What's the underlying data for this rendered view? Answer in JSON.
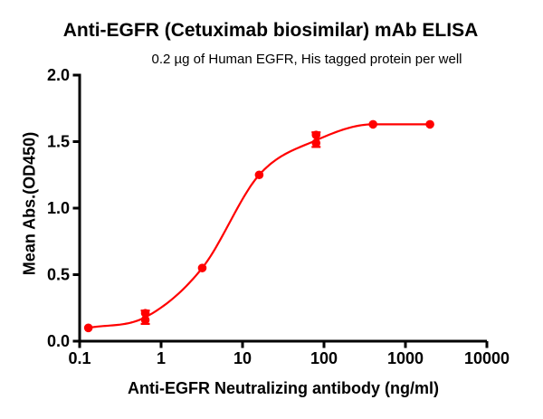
{
  "chart_data": {
    "type": "scatter",
    "title": "Anti-EGFR (Cetuximab biosimilar) mAb ELISA",
    "subtitle": "0.2 µg of Human EGFR, His tagged protein per well",
    "xlabel": "Anti-EGFR Neutralizing antibody (ng/ml)",
    "ylabel": "Mean Abs.(OD450)",
    "x_scale": "log10",
    "xlim": [
      0.1,
      10000
    ],
    "ylim": [
      0,
      2.0
    ],
    "x_tick_values": [
      0.1,
      1,
      10,
      100,
      1000,
      10000
    ],
    "x_tick_labels": [
      "0.1",
      "1",
      "10",
      "100",
      "1000",
      "10000"
    ],
    "y_tick_values": [
      0.0,
      0.5,
      1.0,
      1.5,
      2.0
    ],
    "y_tick_labels": [
      "0.0",
      "0.5",
      "1.0",
      "1.5",
      "2.0"
    ],
    "grid": false,
    "legend": "none",
    "curve_fit": "4PL sigmoid dose-response curve through points",
    "colors": {
      "series": "#ff0000",
      "axis": "#000000",
      "text": "#000000"
    },
    "series": [
      {
        "name": "Anti-EGFR (Cetuximab biosimilar) mAb",
        "marker": "circle",
        "color": "#ff0000",
        "points": [
          {
            "x": 0.128,
            "y": 0.1
          },
          {
            "x": 0.64,
            "y": 0.18,
            "y_low": 0.13,
            "y_high": 0.23,
            "replicates": [
              0.16,
              0.21
            ]
          },
          {
            "x": 3.2,
            "y": 0.55
          },
          {
            "x": 16,
            "y": 1.25
          },
          {
            "x": 80,
            "y": 1.51,
            "y_low": 1.46,
            "y_high": 1.57,
            "replicates": [
              1.49,
              1.55
            ]
          },
          {
            "x": 400,
            "y": 1.63
          },
          {
            "x": 2000,
            "y": 1.63
          }
        ]
      }
    ]
  }
}
